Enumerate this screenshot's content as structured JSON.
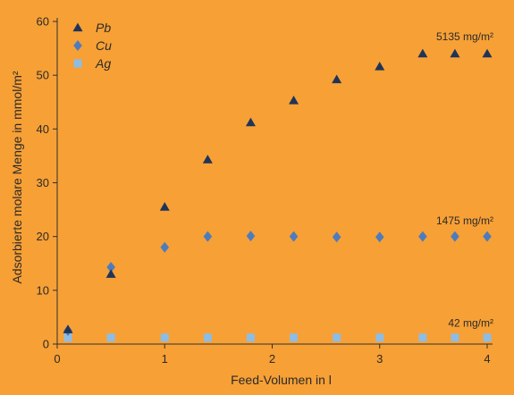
{
  "chart_data": {
    "type": "scatter",
    "xlabel": "Feed-Volumen in l",
    "ylabel": "Adsorbierte molare Menge in mmol/m²",
    "xlim": [
      0,
      4
    ],
    "ylim": [
      0,
      60
    ],
    "xticks": [
      "0",
      "1",
      "2",
      "3",
      "4"
    ],
    "yticks": [
      "0",
      "10",
      "20",
      "30",
      "40",
      "50",
      "60"
    ],
    "grid": false,
    "legend_position": "top-left",
    "series": [
      {
        "name": "Pb",
        "marker": "triangle",
        "color": "#1f3458",
        "x": [
          0.1,
          0.5,
          1.0,
          1.4,
          1.8,
          2.2,
          2.6,
          3.0,
          3.4,
          3.7,
          4.0
        ],
        "y": [
          2.7,
          13.0,
          25.5,
          34.3,
          41.2,
          45.3,
          49.2,
          51.6,
          54.0,
          54.0,
          54.0
        ]
      },
      {
        "name": "Cu",
        "marker": "diamond",
        "color": "#4d7cbd",
        "x": [
          0.1,
          0.5,
          1.0,
          1.4,
          1.8,
          2.2,
          2.6,
          3.0,
          3.4,
          3.7,
          4.0
        ],
        "y": [
          2.5,
          14.3,
          18.0,
          20.0,
          20.1,
          20.0,
          19.9,
          19.9,
          20.0,
          20.0,
          20.0
        ]
      },
      {
        "name": "Ag",
        "marker": "square",
        "color": "#8dbde5",
        "x": [
          0.1,
          0.5,
          1.0,
          1.4,
          1.8,
          2.2,
          2.6,
          3.0,
          3.4,
          3.7,
          4.0
        ],
        "y": [
          1.2,
          1.2,
          1.2,
          1.2,
          1.2,
          1.2,
          1.2,
          1.2,
          1.2,
          1.2,
          1.2
        ]
      }
    ],
    "annotations": [
      {
        "text": "5135 mg/m²",
        "series": "Pb"
      },
      {
        "text": "1475 mg/m²",
        "series": "Cu"
      },
      {
        "text": "42 mg/m²",
        "series": "Ag"
      }
    ],
    "background_color": "#f7a035"
  }
}
